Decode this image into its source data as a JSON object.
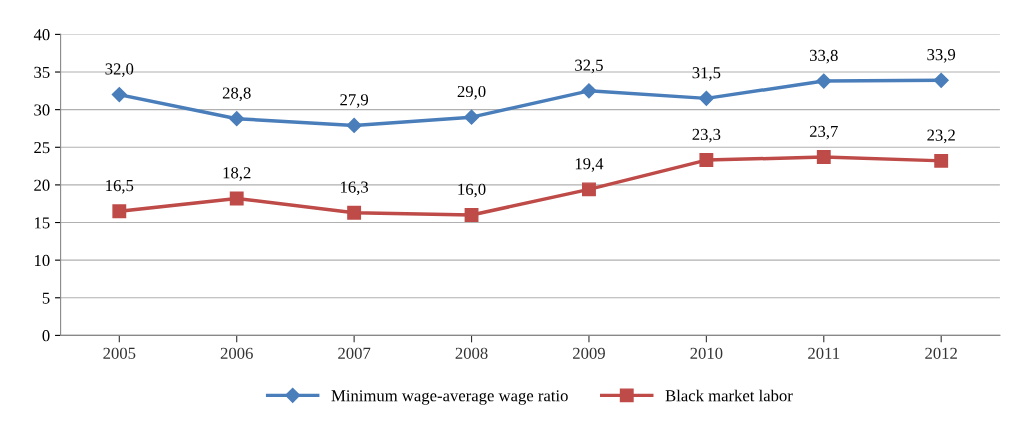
{
  "chart_data": {
    "type": "line",
    "categories": [
      "2005",
      "2006",
      "2007",
      "2008",
      "2009",
      "2010",
      "2011",
      "2012"
    ],
    "ylim": [
      0,
      40
    ],
    "yticks": [
      0,
      5,
      10,
      15,
      20,
      25,
      30,
      35,
      40
    ],
    "grid": "y",
    "legend": "bottom",
    "line_style": "solid",
    "series": [
      {
        "name": "Minimum wage-average wage ratio",
        "color": "#4a7ebb",
        "marker": "diamond",
        "values": [
          32.0,
          28.8,
          27.9,
          29.0,
          32.5,
          31.5,
          33.8,
          33.9
        ],
        "value_labels": [
          "32,0",
          "28,8",
          "27,9",
          "29,0",
          "32,5",
          "31,5",
          "33,8",
          "33,9"
        ]
      },
      {
        "name": "Black market labor",
        "color": "#be4b48",
        "marker": "square",
        "values": [
          16.5,
          18.2,
          16.3,
          16.0,
          19.4,
          23.3,
          23.7,
          23.2
        ],
        "value_labels": [
          "16,5",
          "18,2",
          "16,3",
          "16,0",
          "19,4",
          "23,3",
          "23,7",
          "23,2"
        ]
      }
    ]
  }
}
